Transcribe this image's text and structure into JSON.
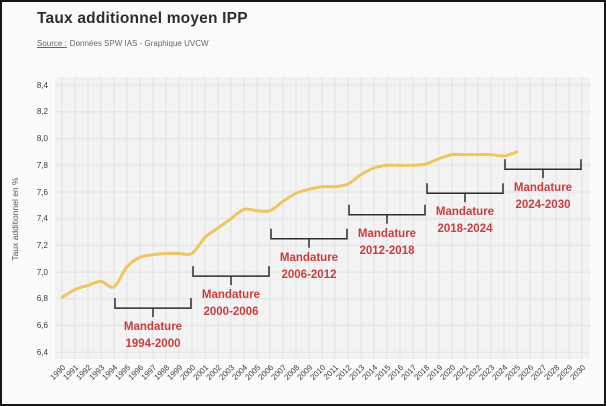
{
  "header": {
    "title": "Taux additionnel moyen IPP",
    "source_label": "Source :",
    "source_text": "Données SPW IAS - Graphique UVCW"
  },
  "colors": {
    "page_bg": "#fbfbfb",
    "plot_bg": "#f3f3f3",
    "grid": "#e2e2e2",
    "frame_border": "#161616",
    "line": "#eec660",
    "annotation_text": "#cb3d3c",
    "bracket": "#2d2d2d"
  },
  "chart_data": {
    "type": "line",
    "title": "Taux additionnel moyen IPP",
    "xlabel": "",
    "ylabel": "Taux additionnel en %",
    "ylim": [
      6.4,
      8.4
    ],
    "ytick_step": 0.2,
    "xlim": [
      1990,
      2030
    ],
    "xtick_step": 1,
    "grid": true,
    "decimal_separator": ",",
    "legend": "none",
    "series": [
      {
        "name": "Taux additionnel moyen IPP",
        "x": [
          1990,
          1991,
          1992,
          1993,
          1994,
          1995,
          1996,
          1997,
          1998,
          1999,
          2000,
          2001,
          2002,
          2003,
          2004,
          2005,
          2006,
          2007,
          2008,
          2009,
          2010,
          2011,
          2012,
          2013,
          2014,
          2015,
          2016,
          2017,
          2018,
          2019,
          2020,
          2021,
          2022,
          2023,
          2024,
          2025
        ],
        "values": [
          6.81,
          6.87,
          6.9,
          6.93,
          6.89,
          7.04,
          7.11,
          7.13,
          7.14,
          7.14,
          7.14,
          7.26,
          7.33,
          7.4,
          7.47,
          7.46,
          7.46,
          7.53,
          7.59,
          7.62,
          7.64,
          7.64,
          7.66,
          7.73,
          7.78,
          7.8,
          7.8,
          7.8,
          7.81,
          7.85,
          7.88,
          7.88,
          7.88,
          7.88,
          7.87,
          7.9
        ]
      }
    ],
    "annotations": [
      {
        "line1": "Mandature",
        "line2": "1994-2000",
        "from": 1994,
        "to": 2000,
        "bracket_value": 6.73
      },
      {
        "line1": "Mandature",
        "line2": "2000-2006",
        "from": 2000,
        "to": 2006,
        "bracket_value": 6.97
      },
      {
        "line1": "Mandature",
        "line2": "2006-2012",
        "from": 2006,
        "to": 2012,
        "bracket_value": 7.25
      },
      {
        "line1": "Mandature",
        "line2": "2012-2018",
        "from": 2012,
        "to": 2018,
        "bracket_value": 7.43
      },
      {
        "line1": "Mandature",
        "line2": "2018-2024",
        "from": 2018,
        "to": 2024,
        "bracket_value": 7.59
      },
      {
        "line1": "Mandature",
        "line2": "2024-2030",
        "from": 2024,
        "to": 2030,
        "bracket_value": 7.77
      }
    ]
  }
}
